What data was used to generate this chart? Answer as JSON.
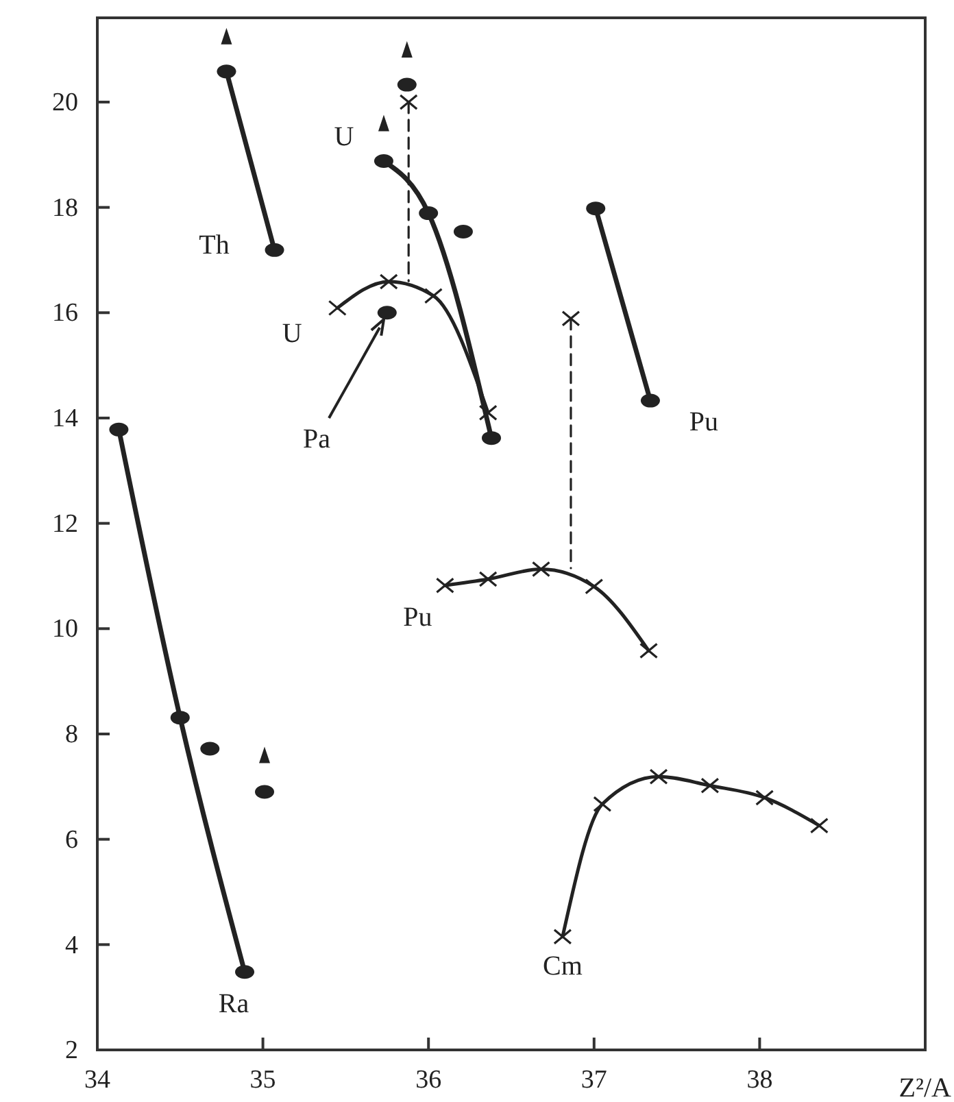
{
  "chart_data": {
    "type": "line",
    "xlabel": "Z²/A",
    "xlim": [
      34,
      39
    ],
    "ylim": [
      2,
      21.6
    ],
    "xticks": [
      34,
      35,
      36,
      37,
      38
    ],
    "yticks": [
      2,
      4,
      6,
      8,
      10,
      12,
      14,
      16,
      18,
      20
    ],
    "grid": false,
    "legend": false,
    "series": [
      {
        "name": "Th",
        "marker": "circle",
        "color": "#222222",
        "x": [
          34.78,
          35.07
        ],
        "values": [
          20.58,
          17.19
        ]
      },
      {
        "name": "U",
        "type": "line",
        "marker": "circle",
        "color": "#222222",
        "x": [
          35.73,
          36.0,
          36.38
        ],
        "values": [
          18.88,
          17.89,
          13.62
        ]
      },
      {
        "name": "U",
        "type": "line",
        "marker": "cross",
        "color": "#222222",
        "x": [
          35.45,
          35.76,
          36.03,
          36.36
        ],
        "values": [
          16.09,
          16.59,
          16.32,
          14.1
        ]
      },
      {
        "name": "Pu",
        "type": "line",
        "marker": "circle",
        "color": "#222222",
        "x": [
          37.01,
          37.34
        ],
        "values": [
          17.98,
          14.33
        ]
      },
      {
        "name": "Pu",
        "type": "line",
        "marker": "cross",
        "color": "#222222",
        "x": [
          36.1,
          36.36,
          36.68,
          37.0,
          37.33
        ],
        "values": [
          10.82,
          10.94,
          11.13,
          10.8,
          9.58
        ]
      },
      {
        "name": "Ra",
        "type": "line",
        "marker": "circle",
        "color": "#222222",
        "x": [
          34.13,
          34.5,
          34.89
        ],
        "values": [
          13.78,
          8.31,
          3.48
        ]
      },
      {
        "name": "Cm",
        "type": "line",
        "marker": "cross",
        "color": "#222222",
        "x": [
          36.81,
          37.05,
          37.39,
          37.7,
          38.03,
          38.36
        ],
        "values": [
          4.15,
          6.67,
          7.19,
          7.02,
          6.79,
          6.26
        ]
      },
      {
        "type": "scatter",
        "marker": "circle",
        "color": "#222222",
        "x": [
          36.21,
          35.75,
          35.87,
          34.68,
          35.01
        ],
        "values": [
          17.54,
          16.0,
          20.33,
          7.72,
          6.9
        ]
      },
      {
        "type": "scatter",
        "marker": "cross",
        "color": "#222222",
        "x": [
          35.88,
          36.86
        ],
        "values": [
          20.0,
          15.89
        ]
      },
      {
        "type": "line",
        "marker": "none",
        "line_style": "dashed",
        "color": "#222222",
        "x": [
          35.88,
          35.88
        ],
        "values": [
          20.0,
          16.6
        ]
      },
      {
        "type": "line",
        "marker": "none",
        "line_style": "dashed",
        "color": "#222222",
        "x": [
          36.86,
          36.86
        ],
        "values": [
          15.89,
          11.15
        ]
      },
      {
        "type": "scatter",
        "marker": "triangle",
        "color": "#222222",
        "x": [
          34.78,
          35.73,
          35.87,
          35.01
        ],
        "values": [
          21.2,
          19.55,
          20.95,
          7.55
        ]
      }
    ],
    "annotations": [
      "Pa"
    ]
  }
}
